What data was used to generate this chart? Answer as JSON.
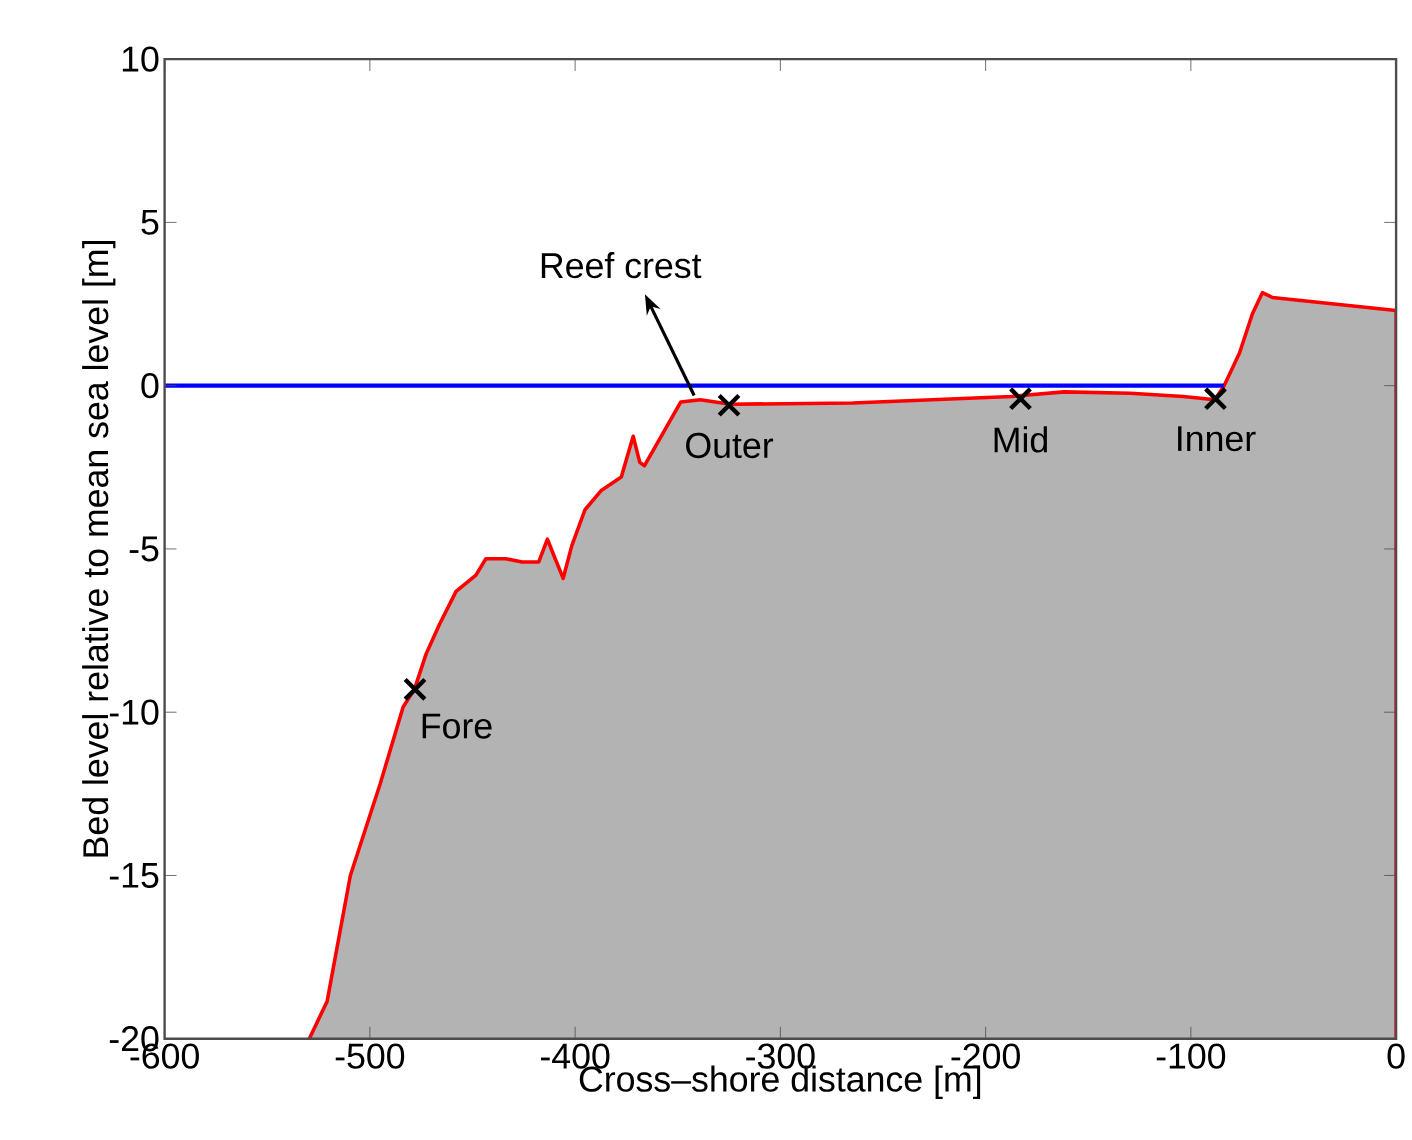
{
  "chart_data": {
    "type": "area",
    "xlabel": "Cross–shore distance [m]",
    "ylabel": "Bed level relative to mean sea level [m]",
    "xlim": [
      -600,
      0
    ],
    "ylim": [
      -20,
      10
    ],
    "xticks": [
      -600,
      -500,
      -400,
      -300,
      -200,
      -100,
      0
    ],
    "yticks": [
      -20,
      -15,
      -10,
      -5,
      0,
      5,
      10
    ],
    "grid": false,
    "series": [
      {
        "color": "#b3b3b3",
        "x": [
          -529.5,
          -520.8,
          -509.5,
          -495,
          -483.8,
          -478.3,
          -472.5,
          -466,
          -458,
          -448.3,
          -443.5,
          -433.8,
          -425.8,
          -417.7,
          -413.5,
          -409.7,
          -405.8,
          -401.6,
          -395.2,
          -387.1,
          -377.5,
          -371.7,
          -368.5,
          -366.2,
          -348.5,
          -339,
          -324.4,
          -264.7,
          -187.4,
          -161.7,
          -129.5,
          -103.7,
          -88.3,
          -83.8,
          -76.3,
          -70,
          -65.1,
          -60.3,
          0
        ],
        "values": [
          -20,
          -18.85,
          -15.0,
          -12.2,
          -9.84,
          -9.3,
          -8.2,
          -7.3,
          -6.3,
          -5.8,
          -5.3,
          -5.3,
          -5.4,
          -5.4,
          -4.7,
          -5.3,
          -5.9,
          -4.9,
          -3.8,
          -3.2,
          -2.8,
          -1.55,
          -2.35,
          -2.45,
          -0.5,
          -0.43,
          -0.57,
          -0.53,
          -0.33,
          -0.19,
          -0.23,
          -0.33,
          -0.43,
          0.0,
          1.0,
          2.2,
          2.85,
          2.7,
          2.3
        ]
      },
      {
        "type": "line",
        "color": "#0000ff",
        "x": [
          -600,
          -84
        ],
        "values": [
          0,
          0
        ]
      },
      {
        "type": "scatter",
        "color": "#000000",
        "marker": "cross",
        "x": [
          -478,
          -325,
          -183,
          -88
        ],
        "values": [
          -9.3,
          -0.6,
          -0.4,
          -0.4
        ]
      }
    ],
    "annotations": [
      {
        "text": "Fore",
        "x": -478,
        "y": -9.3
      },
      {
        "text": "Outer",
        "x": -325,
        "y": -0.6
      },
      {
        "text": "Mid",
        "x": -183,
        "y": -0.4
      },
      {
        "text": "Inner",
        "x": -88,
        "y": -0.4
      },
      {
        "text": "Reef crest",
        "x": -342,
        "y": -0.3
      }
    ]
  }
}
